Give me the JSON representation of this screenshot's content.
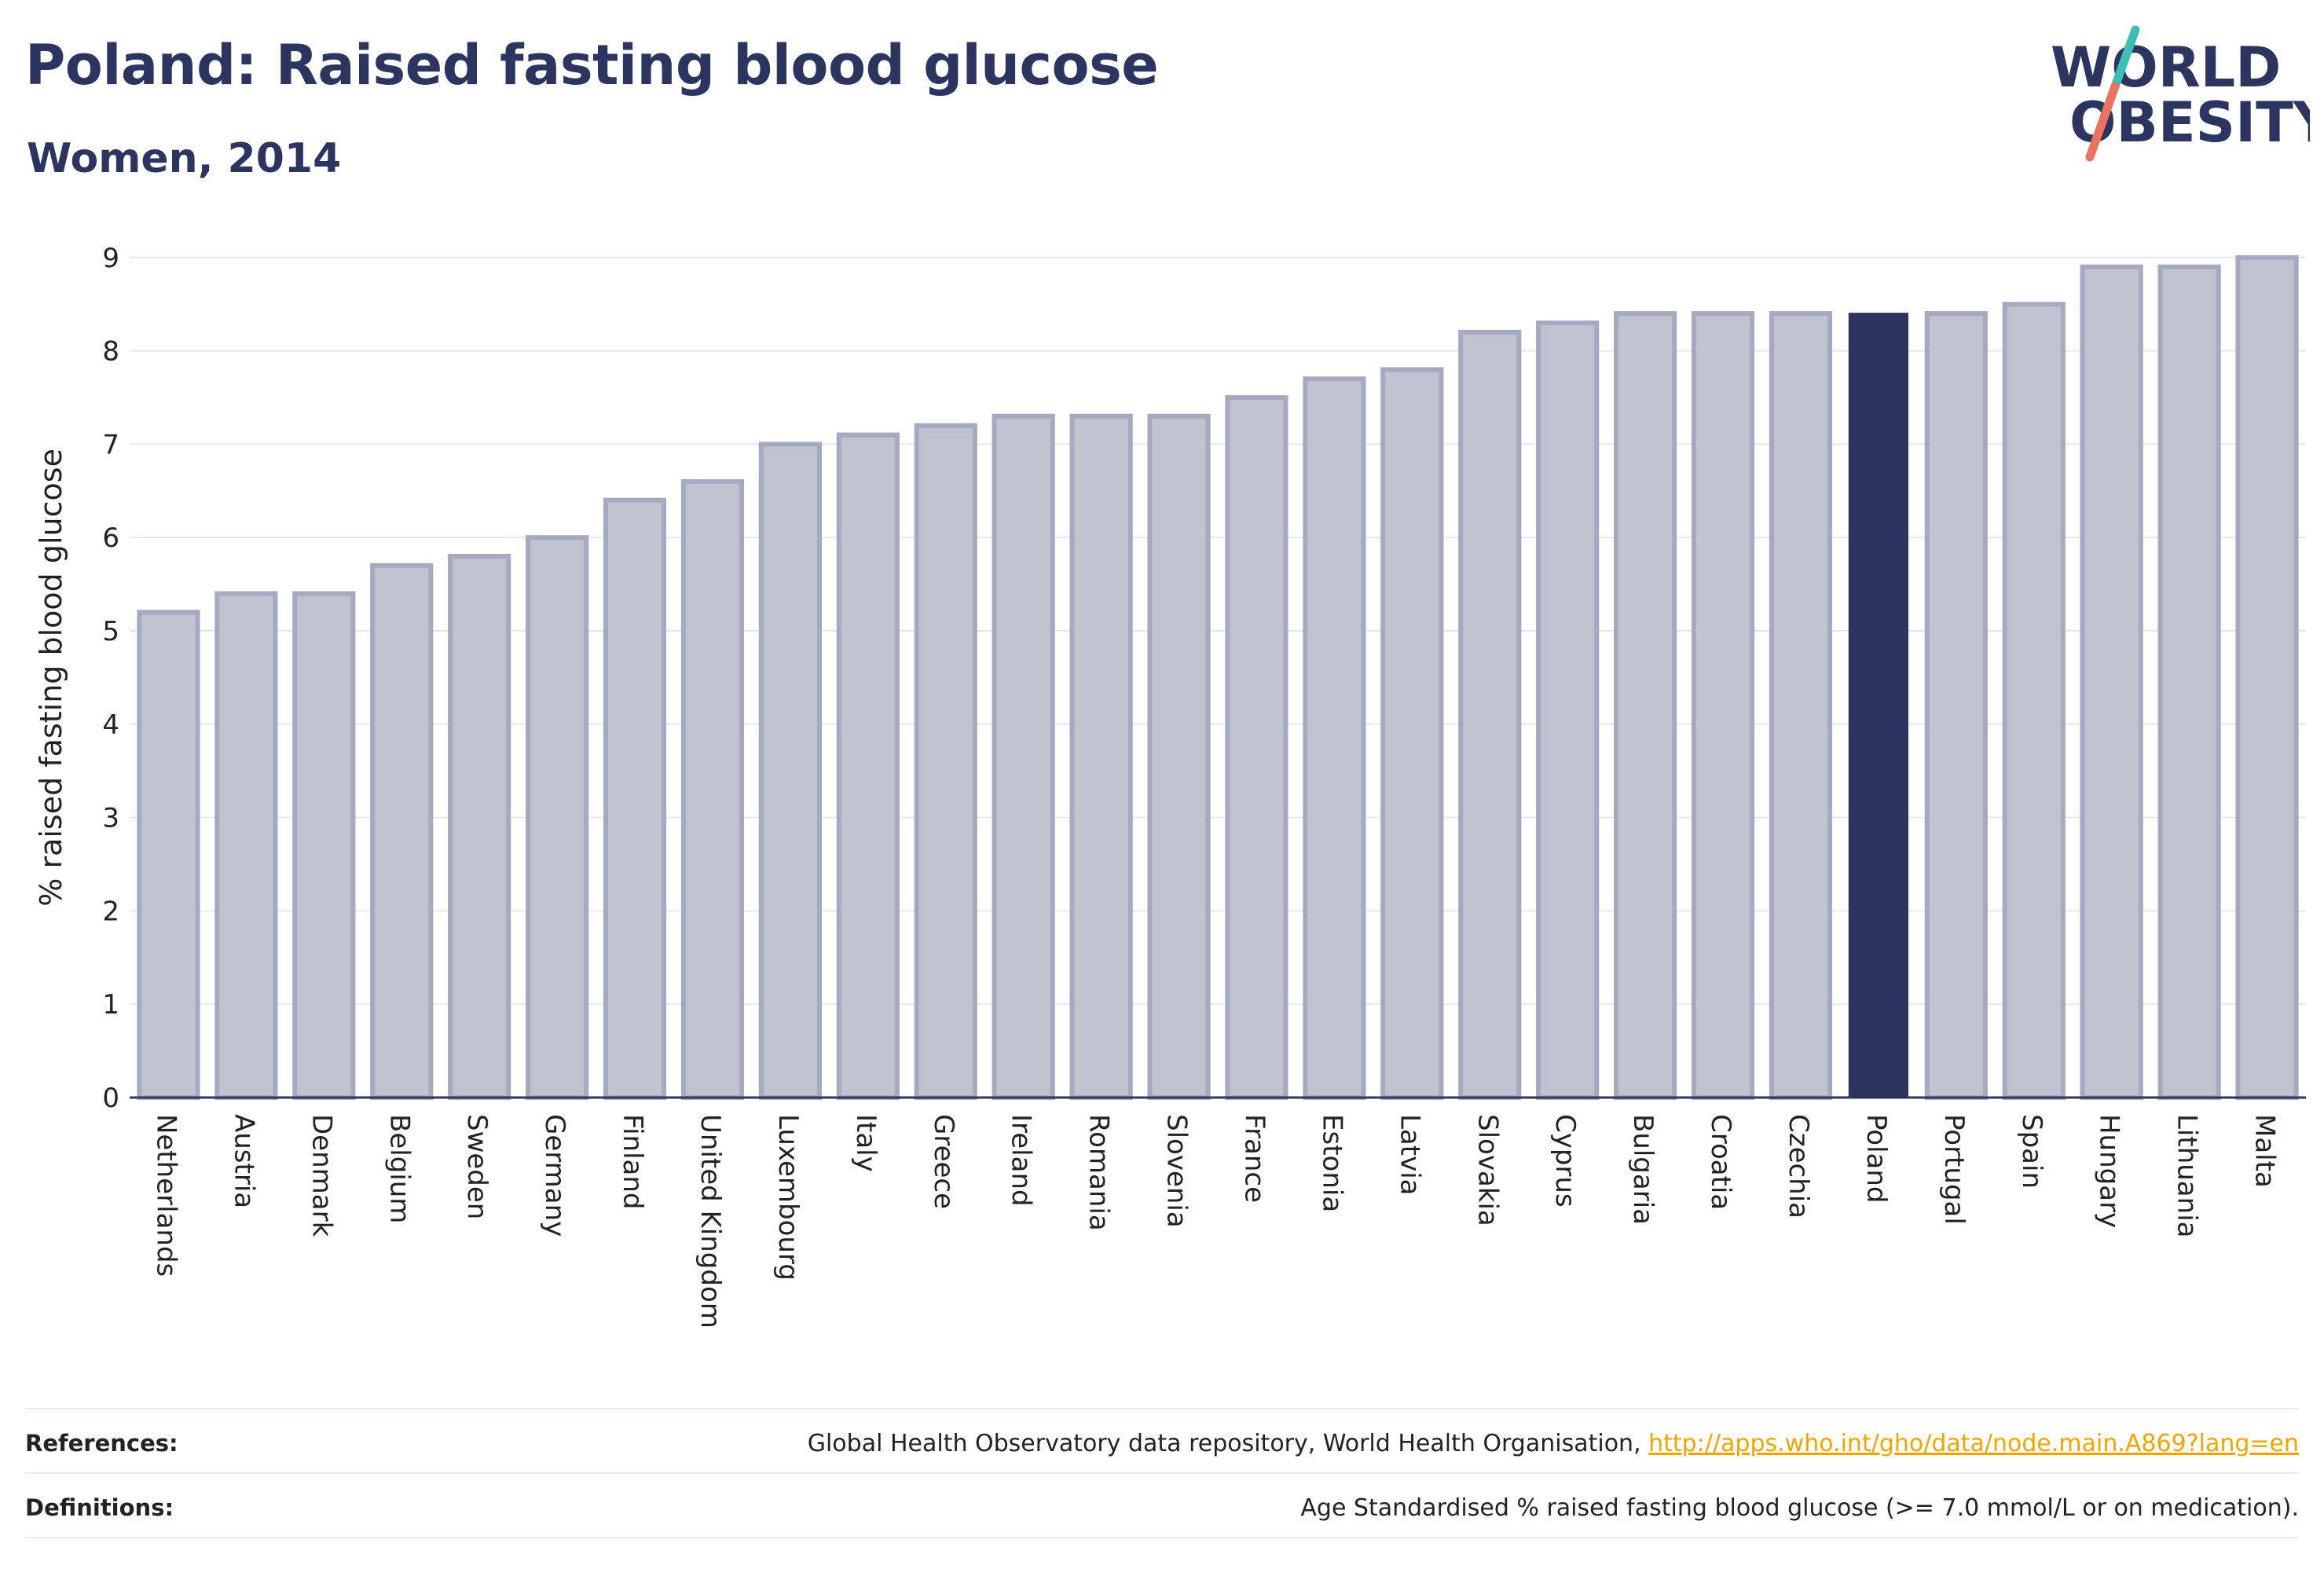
{
  "header": {
    "title": "Poland: Raised fasting blood glucose",
    "subtitle": "Women, 2014"
  },
  "logo": {
    "line1": "WORLD",
    "line2": "OBESITY",
    "name": "world-obesity-logo"
  },
  "colors": {
    "bar_fill": "#bfc3d0",
    "bar_stroke": "#a4aac0",
    "highlight": "#2b3560",
    "grid": "#e6e8ef",
    "axis": "#2b3560"
  },
  "chart_data": {
    "type": "bar",
    "ylabel": "% raised fasting blood glucose",
    "ylim": [
      0,
      9.3
    ],
    "yticks": [
      0,
      1,
      2,
      3,
      4,
      5,
      6,
      7,
      8,
      9
    ],
    "grid": true,
    "highlight": "Poland",
    "categories": [
      "Netherlands",
      "Austria",
      "Denmark",
      "Belgium",
      "Sweden",
      "Germany",
      "Finland",
      "United Kingdom",
      "Luxembourg",
      "Italy",
      "Greece",
      "Ireland",
      "Romania",
      "Slovenia",
      "France",
      "Estonia",
      "Latvia",
      "Slovakia",
      "Cyprus",
      "Bulgaria",
      "Croatia",
      "Czechia",
      "Poland",
      "Portugal",
      "Spain",
      "Hungary",
      "Lithuania",
      "Malta"
    ],
    "values": [
      5.2,
      5.4,
      5.4,
      5.7,
      5.8,
      6.0,
      6.4,
      6.6,
      7.0,
      7.1,
      7.2,
      7.3,
      7.3,
      7.3,
      7.5,
      7.7,
      7.8,
      8.2,
      8.3,
      8.4,
      8.4,
      8.4,
      8.4,
      8.4,
      8.5,
      8.9,
      8.9,
      9.0
    ]
  },
  "footer": {
    "references_label": "References:",
    "references_text": "Global Health Observatory data repository, World Health Organisation, ",
    "references_link": "http://apps.who.int/gho/data/node.main.A869?lang=en",
    "definitions_label": "Definitions:",
    "definitions_text": "Age Standardised % raised fasting blood glucose (>= 7.0 mmol/L or on medication)."
  }
}
